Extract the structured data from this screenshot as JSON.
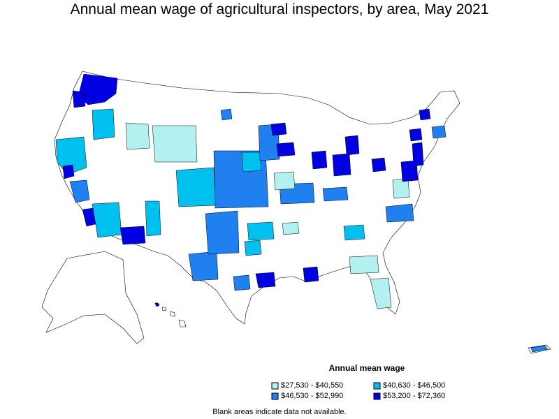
{
  "title": "Annual mean wage of agricultural inspectors, by area, May 2021",
  "legend": {
    "title": "Annual mean wage",
    "items": [
      {
        "label": "$27,530 - $40,550",
        "color": "#b3f0f0"
      },
      {
        "label": "$40,630 - $46,500",
        "color": "#00c0f0"
      },
      {
        "label": "$46,530 - $52,990",
        "color": "#2080f0"
      },
      {
        "label": "$53,200 - $72,360",
        "color": "#0000e0"
      }
    ]
  },
  "note": "Blank areas indicate data not available.",
  "colors": {
    "outline": "#000000",
    "blank": "#ffffff"
  }
}
